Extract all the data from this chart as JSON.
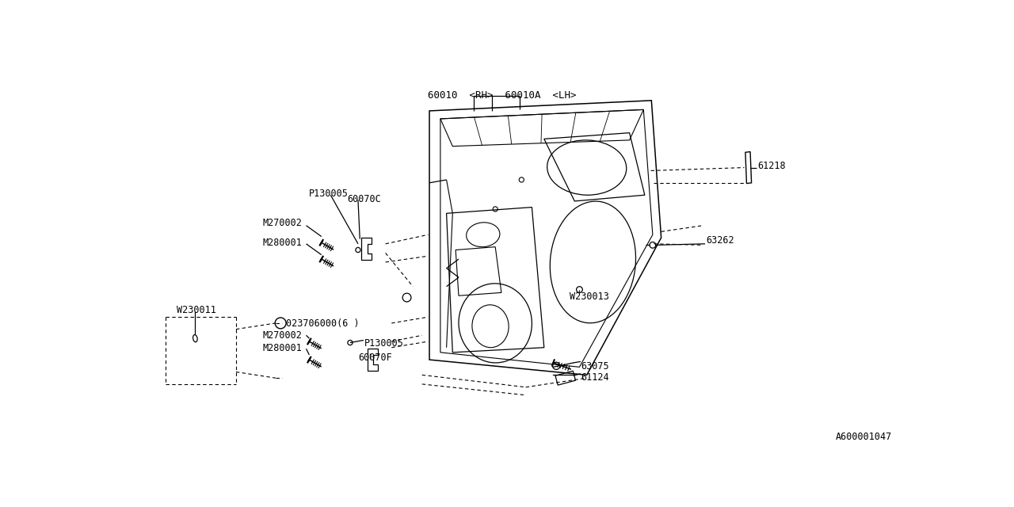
{
  "bg_color": "#ffffff",
  "lc": "#000000",
  "fs": 8.5,
  "ff": "monospace",
  "labels": {
    "top_part": "60010  <RH>  60010A  <LH>",
    "p130005_top": "P130005",
    "m270002_top": "M270002",
    "60070c": "60070C",
    "m280001_top": "M280001",
    "w230011": "W230011",
    "n_label": "ⓝ023706000(6 )",
    "m270002_bot": "M270002",
    "m280001_bot": "M280001",
    "p130005_bot": "P130005",
    "60070f": "60070F",
    "w230013": "W230013",
    "63262": "63262",
    "61218": "61218",
    "63075": "63075",
    "61124": "61124",
    "diagram_id": "A600001047"
  }
}
